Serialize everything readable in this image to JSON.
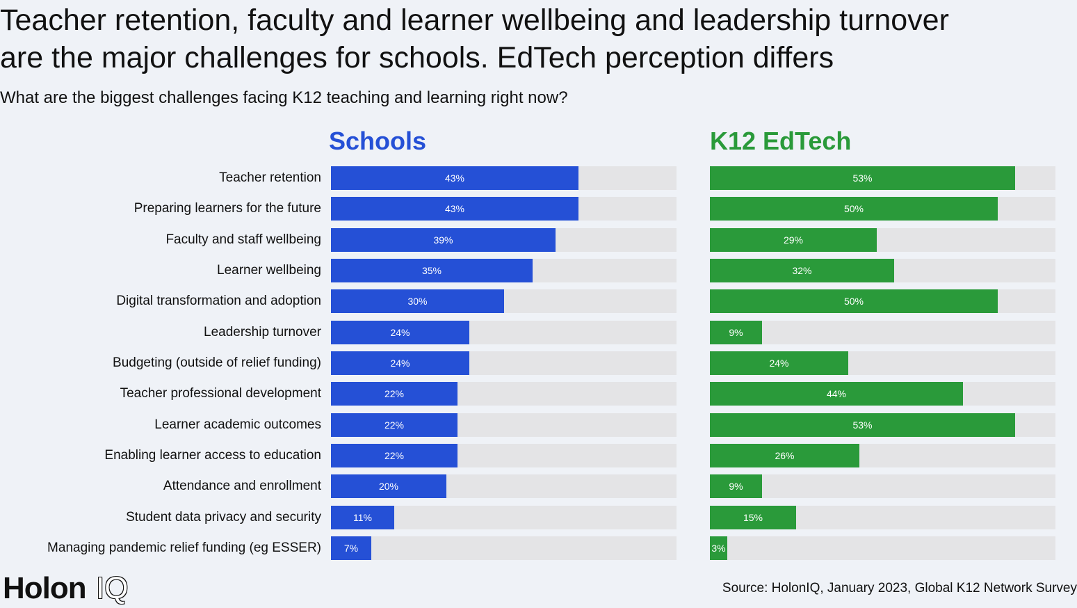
{
  "title_line1": "Teacher retention, faculty and learner wellbeing and leadership turnover",
  "title_line2": "are the major challenges for schools. EdTech perception differs",
  "subtitle": "What are the biggest challenges facing K12 teaching and learning right now?",
  "source": "Source: HolonIQ, January 2023, Global K12 Network Survey",
  "logo": {
    "main": "Holon",
    "suffix": "IQ"
  },
  "colors": {
    "schools": "#2550d6",
    "edtech": "#2a9a3a",
    "track": "#e4e4e6",
    "background": "#eff2f7"
  },
  "chart_data": [
    {
      "type": "bar",
      "orientation": "horizontal",
      "title": "Schools",
      "unit": "%",
      "xlim": [
        0,
        60
      ],
      "categories": [
        "Teacher retention",
        "Preparing learners for the future",
        "Faculty and staff wellbeing",
        "Learner wellbeing",
        "Digital transformation and adoption",
        "Leadership turnover",
        "Budgeting (outside of relief funding)",
        "Teacher professional development",
        "Learner academic outcomes",
        "Enabling learner access to education",
        "Attendance and enrollment",
        "Student data privacy and security",
        "Managing pandemic relief funding (eg ESSER)"
      ],
      "values": [
        43,
        43,
        39,
        35,
        30,
        24,
        24,
        22,
        22,
        22,
        20,
        11,
        7
      ],
      "labels": [
        "43%",
        "43%",
        "39%",
        "35%",
        "30%",
        "24%",
        "24%",
        "22%",
        "22%",
        "22%",
        "20%",
        "11%",
        "7%"
      ]
    },
    {
      "type": "bar",
      "orientation": "horizontal",
      "title": "K12 EdTech",
      "unit": "%",
      "xlim": [
        0,
        60
      ],
      "categories": [
        "Teacher retention",
        "Preparing learners for the future",
        "Faculty and staff wellbeing",
        "Learner wellbeing",
        "Digital transformation and adoption",
        "Leadership turnover",
        "Budgeting (outside of relief funding)",
        "Teacher professional development",
        "Learner academic outcomes",
        "Enabling learner access to education",
        "Attendance and enrollment",
        "Student data privacy and security",
        "Managing pandemic relief funding (eg ESSER)"
      ],
      "values": [
        53,
        50,
        29,
        32,
        50,
        9,
        24,
        44,
        53,
        26,
        9,
        15,
        3
      ],
      "labels": [
        "53%",
        "50%",
        "29%",
        "32%",
        "50%",
        "9%",
        "24%",
        "44%",
        "53%",
        "26%",
        "9%",
        "15%",
        "3%"
      ]
    }
  ]
}
